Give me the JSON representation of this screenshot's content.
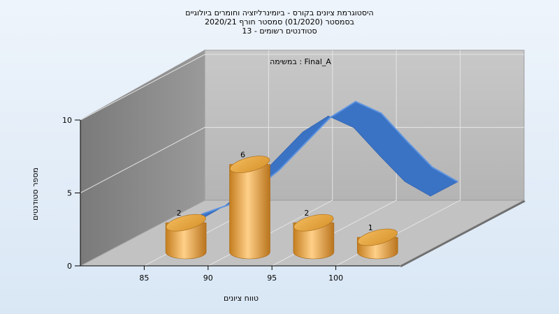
{
  "title_lines": [
    "היסטוגרמת ציונים בקורס - ביומינרליזציה וחומרים ביולוגיים",
    "בסמסטר  (01/2020)  סמסטר חורף 2020/21",
    "סטודנטים רשומים - 13"
  ],
  "chart_data": {
    "type": "bar",
    "title": "היסטוגרמת ציונים בקורס - ביומינרליזציה וחומרים ביולוגיים",
    "annotation": "במשימה : Final_A",
    "xlabel": "טווח ציונים",
    "ylabel": "מספר סטודנטים",
    "x_ticks": [
      "85",
      "90",
      "95",
      "100"
    ],
    "y_ticks": [
      "0",
      "5",
      "10"
    ],
    "ylim": [
      0,
      10
    ],
    "xlim": [
      80,
      105
    ],
    "bars": [
      {
        "x": 87.5,
        "value": 2,
        "label": "2"
      },
      {
        "x": 92.5,
        "value": 6,
        "label": "6"
      },
      {
        "x": 97.5,
        "value": 2,
        "label": "2"
      },
      {
        "x": 102.5,
        "value": 1,
        "label": "1"
      }
    ],
    "curve": {
      "type": "normal-distribution",
      "color": "#3a72c4",
      "x": [
        84,
        86,
        88,
        90,
        92,
        94,
        96,
        98,
        100,
        102,
        104
      ],
      "y": [
        1.0,
        1.6,
        2.6,
        4.0,
        5.8,
        7.6,
        8.7,
        7.9,
        6.0,
        4.2,
        3.2
      ]
    },
    "colors": {
      "bar": "#e3a64a",
      "wall": "#bdbdbd",
      "side_wall": "#8a8a8a",
      "floor": "#c4c4c4"
    },
    "grid": true
  }
}
